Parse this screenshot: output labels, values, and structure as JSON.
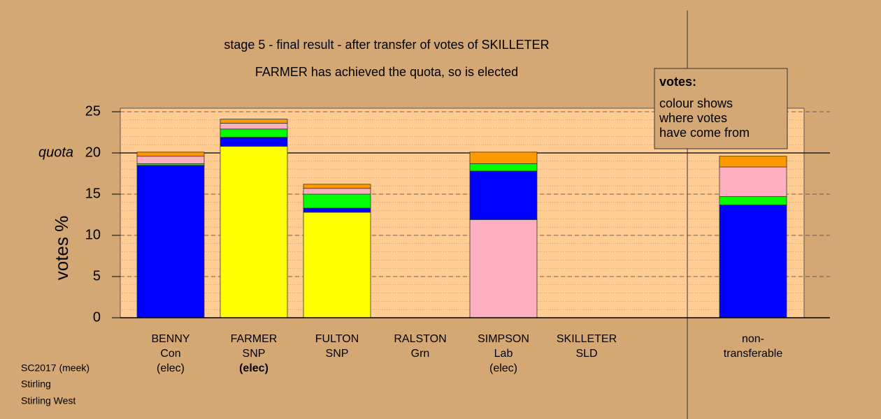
{
  "chart_data": {
    "type": "stacked-bar",
    "title": "stage 5 - final result - after transfer of votes of SKILLETER",
    "subtitle": "FARMER has achieved the quota, so is elected",
    "ylabel": "votes %",
    "ylim": [
      0,
      25
    ],
    "yticks": [
      0,
      5,
      10,
      15,
      20,
      25
    ],
    "quota": 20,
    "quota_label": "quota",
    "grid": true,
    "categories": [
      [
        "BENNY",
        "Con",
        "(elec)"
      ],
      [
        "FARMER",
        "SNP",
        "(elec)"
      ],
      [
        "FULTON",
        "SNP"
      ],
      [
        "RALSTON",
        "Grn"
      ],
      [
        "SIMPSON",
        "Lab",
        "(elec)"
      ],
      [
        "SKILLETER",
        "SLD"
      ],
      [
        "non-",
        "transferable"
      ]
    ],
    "segments": [
      [
        {
          "value": 18.5,
          "color": "#0000ff"
        },
        {
          "value": 0.2,
          "color": "#00ff00"
        },
        {
          "value": 0.9,
          "color": "#ffb0c0"
        },
        {
          "value": 0.5,
          "color": "#ff9900"
        }
      ],
      [
        {
          "value": 20.8,
          "color": "#ffff00"
        },
        {
          "value": 1.1,
          "color": "#0000ff"
        },
        {
          "value": 1.0,
          "color": "#00ff00"
        },
        {
          "value": 0.7,
          "color": "#ffb0c0"
        },
        {
          "value": 0.5,
          "color": "#ff9900"
        }
      ],
      [
        {
          "value": 12.8,
          "color": "#ffff00"
        },
        {
          "value": 0.5,
          "color": "#0000ff"
        },
        {
          "value": 1.7,
          "color": "#00ff00"
        },
        {
          "value": 0.7,
          "color": "#ffb0c0"
        },
        {
          "value": 0.5,
          "color": "#ff9900"
        }
      ],
      [],
      [
        {
          "value": 11.9,
          "color": "#ffb0c0"
        },
        {
          "value": 5.9,
          "color": "#0000ff"
        },
        {
          "value": 0.9,
          "color": "#00ff00"
        },
        {
          "value": 1.4,
          "color": "#ff9900"
        }
      ],
      [],
      [
        {
          "value": 13.7,
          "color": "#0000ff"
        },
        {
          "value": 1.0,
          "color": "#00ff00"
        },
        {
          "value": 3.6,
          "color": "#ffb0c0"
        },
        {
          "value": 1.3,
          "color": "#ff9900"
        }
      ]
    ],
    "legend": {
      "title": "votes:",
      "lines": [
        "colour shows",
        "where votes",
        "have come from"
      ]
    },
    "footer": [
      "SC2017 (meek)",
      "Stirling",
      "Stirling West"
    ]
  }
}
